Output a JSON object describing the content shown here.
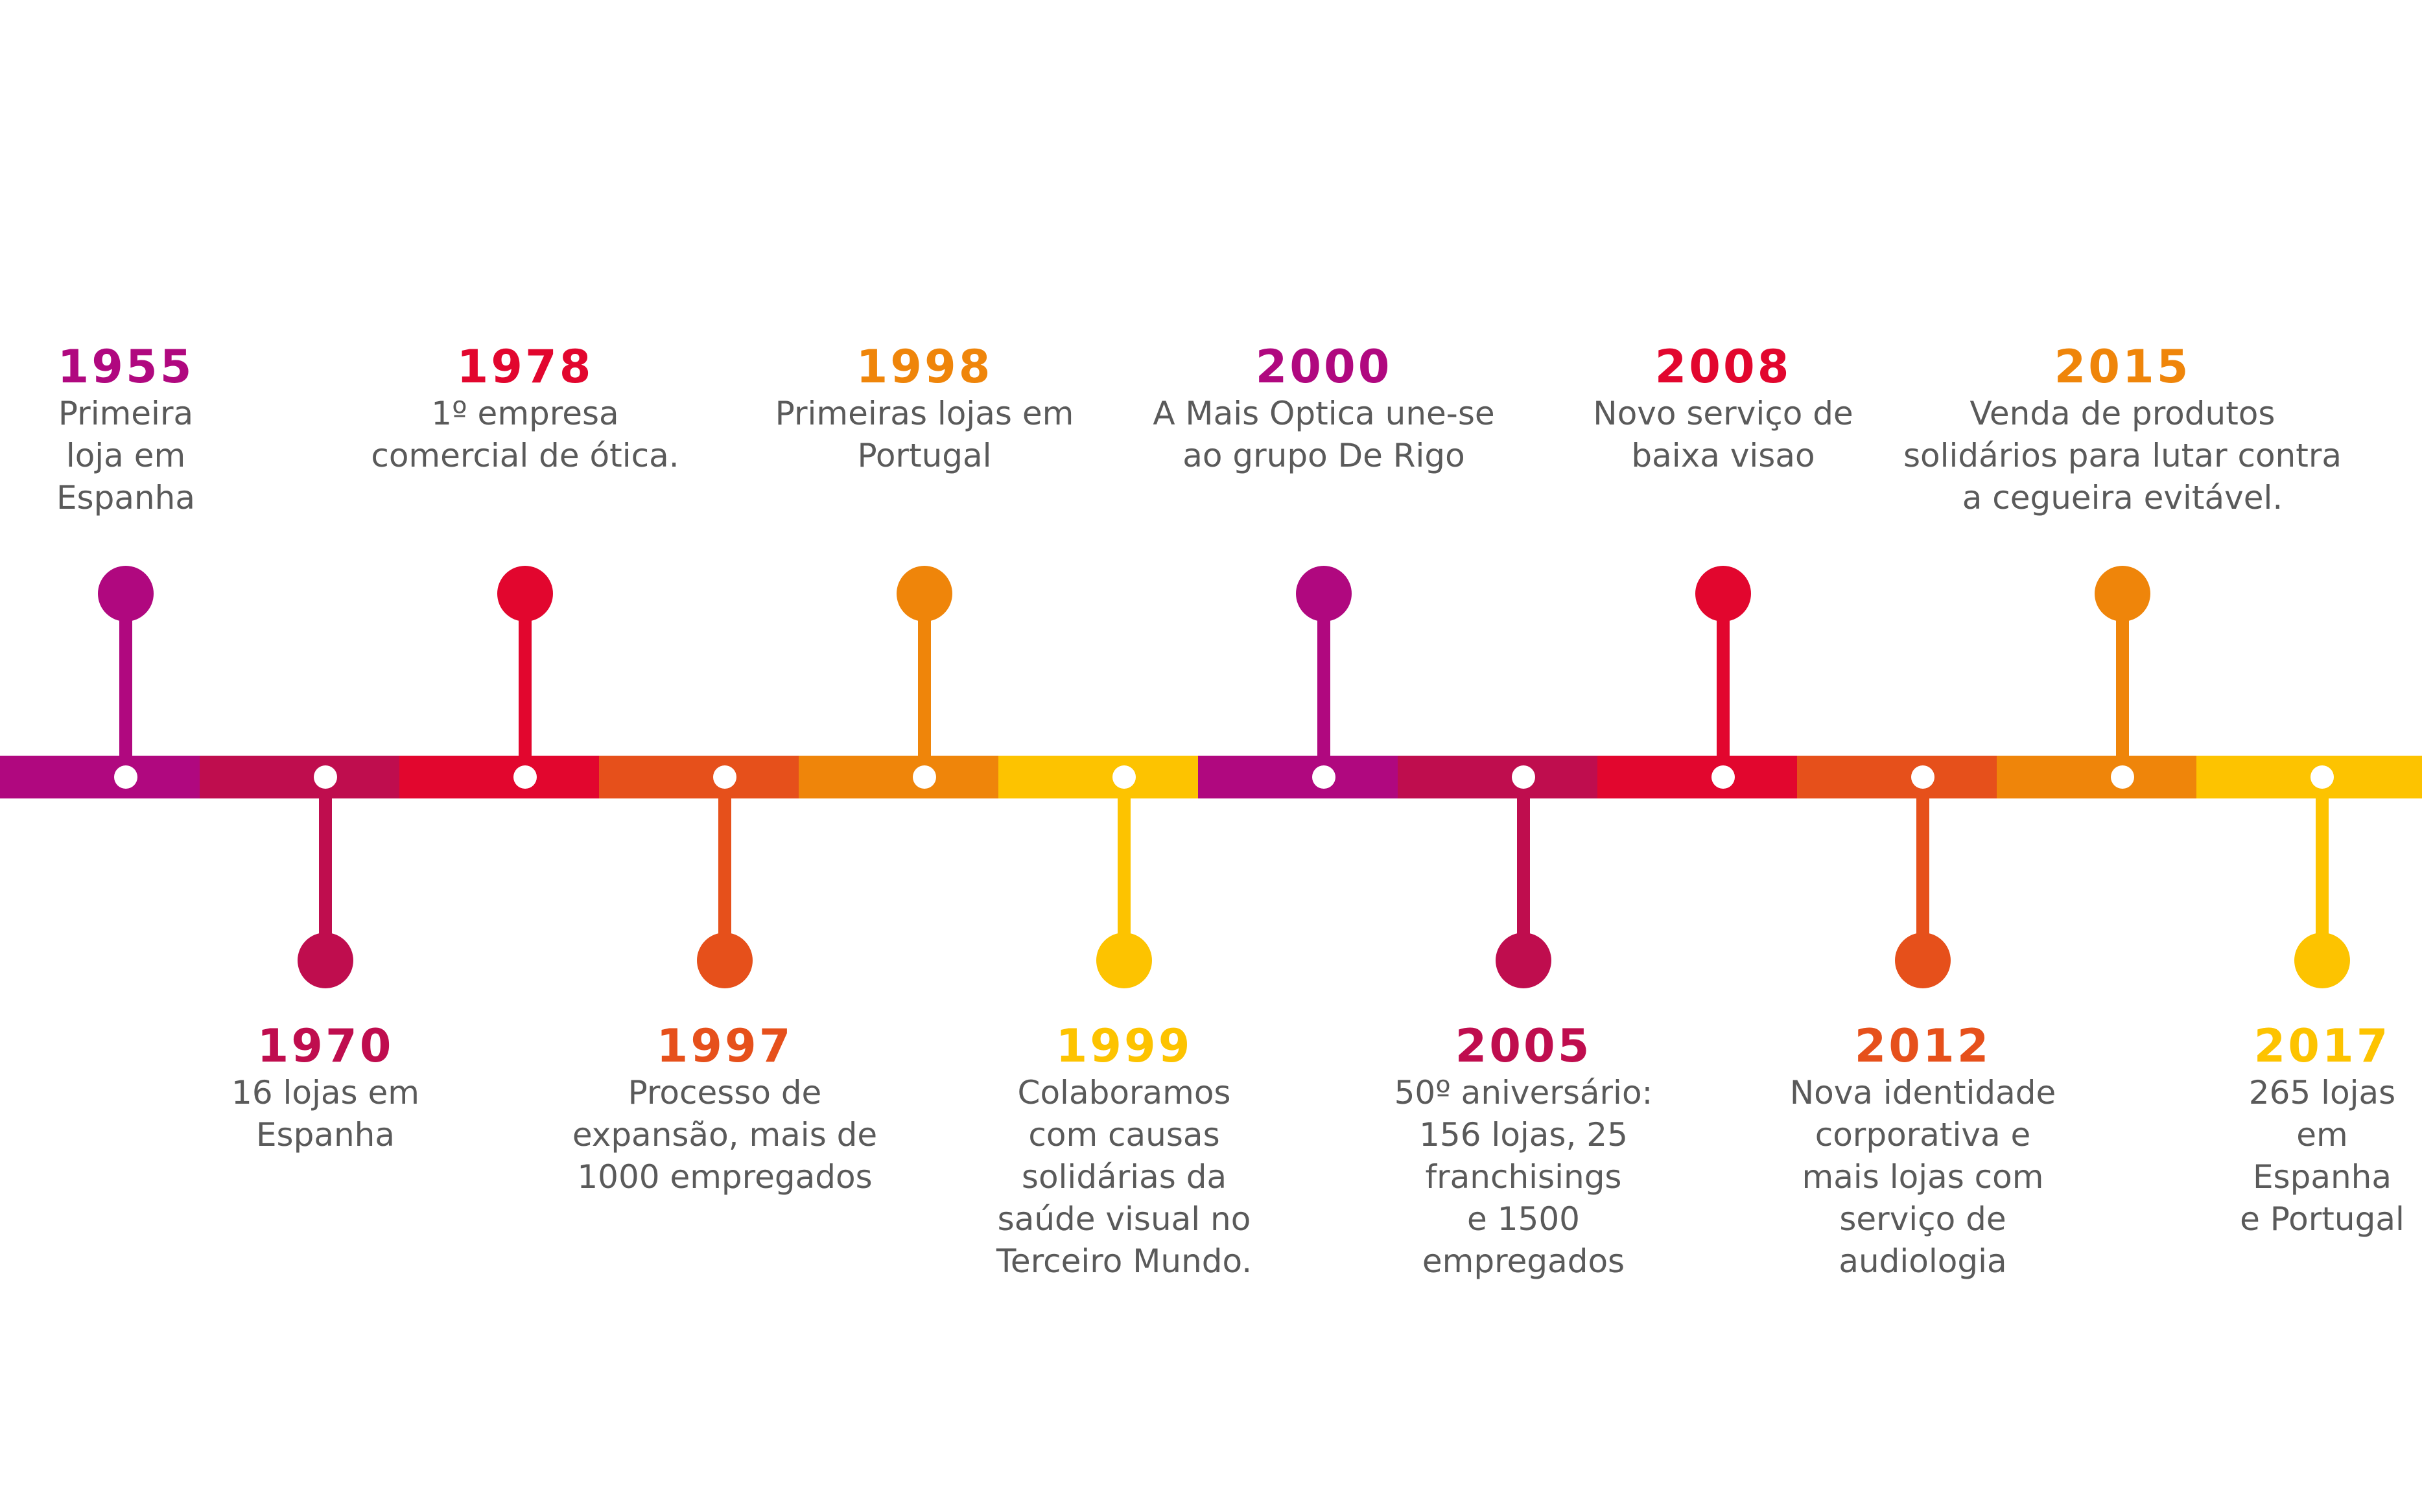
{
  "colors": {
    "magenta": "#B0087F",
    "crimson": "#BF0D4E",
    "red": "#E2062E",
    "orange_red": "#E6501B",
    "orange": "#EF850A",
    "yellow": "#FDC300"
  },
  "events": [
    {
      "year": "1955",
      "desc": "Primeira\nloja em\nEspanha",
      "side": "top",
      "color": "#B0087F"
    },
    {
      "year": "1970",
      "desc": "16 lojas em\nEspanha",
      "side": "bottom",
      "color": "#BF0D4E"
    },
    {
      "year": "1978",
      "desc": "1º empresa\ncomercial de ótica.",
      "side": "top",
      "color": "#E2062E"
    },
    {
      "year": "1997",
      "desc": "Processo de\nexpansão, mais de\n1000 empregados",
      "side": "bottom",
      "color": "#E6501B"
    },
    {
      "year": "1998",
      "desc": "Primeiras lojas em\nPortugal",
      "side": "top",
      "color": "#EF850A"
    },
    {
      "year": "1999",
      "desc": "Colaboramos\ncom causas\nsolidárias da\nsaúde visual no\nTerceiro Mundo.",
      "side": "bottom",
      "color": "#FDC300"
    },
    {
      "year": "2000",
      "desc": "A Mais Optica une-se\nao grupo De Rigo",
      "side": "top",
      "color": "#B0087F"
    },
    {
      "year": "2005",
      "desc": "50º aniversário:\n156 lojas, 25\nfranchisings\ne 1500\nempregados",
      "side": "bottom",
      "color": "#BF0D4E"
    },
    {
      "year": "2008",
      "desc": "Novo serviço de\nbaixa visao",
      "side": "top",
      "color": "#E2062E"
    },
    {
      "year": "2012",
      "desc": "Nova identidade\ncorporativa e\nmais lojas com\nserviço de\naudiologia",
      "side": "bottom",
      "color": "#E6501B"
    },
    {
      "year": "2015",
      "desc": "Venda de produtos\nsolidários para lutar contra\na cegueira evitável.",
      "side": "top",
      "color": "#EF850A"
    },
    {
      "year": "2017",
      "desc": "265 lojas\nem Espanha\ne Portugal",
      "side": "bottom",
      "color": "#FDC300"
    }
  ]
}
